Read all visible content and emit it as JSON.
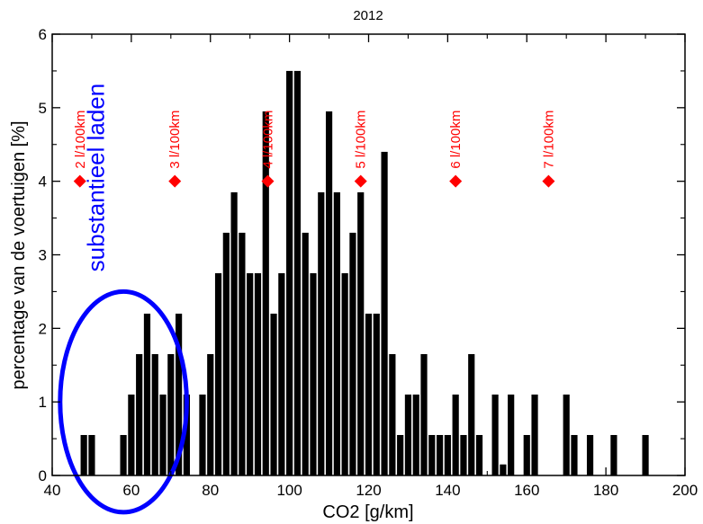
{
  "chart_data": {
    "type": "bar",
    "title": "2012",
    "xlabel": "CO2 [g/km]",
    "ylabel": "percentage van de voertuigen [%]",
    "xlim": [
      40,
      200
    ],
    "ylim": [
      0,
      6
    ],
    "x_ticks": [
      40,
      60,
      80,
      100,
      120,
      140,
      160,
      180,
      200
    ],
    "y_ticks": [
      0,
      1,
      2,
      3,
      4,
      5,
      6
    ],
    "bin_width": 2,
    "bar_color": "#000000",
    "bins": [
      {
        "x": 48,
        "y": 0.55
      },
      {
        "x": 50,
        "y": 0.55
      },
      {
        "x": 58,
        "y": 0.55
      },
      {
        "x": 60,
        "y": 1.1
      },
      {
        "x": 62,
        "y": 1.65
      },
      {
        "x": 64,
        "y": 2.2
      },
      {
        "x": 66,
        "y": 1.65
      },
      {
        "x": 68,
        "y": 1.1
      },
      {
        "x": 70,
        "y": 1.65
      },
      {
        "x": 72,
        "y": 2.2
      },
      {
        "x": 74,
        "y": 1.1
      },
      {
        "x": 78,
        "y": 1.1
      },
      {
        "x": 80,
        "y": 1.65
      },
      {
        "x": 82,
        "y": 2.75
      },
      {
        "x": 84,
        "y": 3.3
      },
      {
        "x": 86,
        "y": 3.85
      },
      {
        "x": 88,
        "y": 3.3
      },
      {
        "x": 90,
        "y": 2.75
      },
      {
        "x": 92,
        "y": 2.75
      },
      {
        "x": 94,
        "y": 4.95
      },
      {
        "x": 96,
        "y": 2.2
      },
      {
        "x": 98,
        "y": 2.75
      },
      {
        "x": 100,
        "y": 5.5
      },
      {
        "x": 102,
        "y": 5.5
      },
      {
        "x": 104,
        "y": 3.3
      },
      {
        "x": 106,
        "y": 2.75
      },
      {
        "x": 108,
        "y": 3.85
      },
      {
        "x": 110,
        "y": 4.95
      },
      {
        "x": 112,
        "y": 3.85
      },
      {
        "x": 114,
        "y": 2.75
      },
      {
        "x": 116,
        "y": 3.3
      },
      {
        "x": 118,
        "y": 3.85
      },
      {
        "x": 120,
        "y": 2.2
      },
      {
        "x": 122,
        "y": 2.2
      },
      {
        "x": 124,
        "y": 4.4
      },
      {
        "x": 126,
        "y": 1.65
      },
      {
        "x": 128,
        "y": 0.55
      },
      {
        "x": 130,
        "y": 1.1
      },
      {
        "x": 132,
        "y": 1.1
      },
      {
        "x": 134,
        "y": 1.65
      },
      {
        "x": 136,
        "y": 0.55
      },
      {
        "x": 138,
        "y": 0.55
      },
      {
        "x": 140,
        "y": 0.55
      },
      {
        "x": 142,
        "y": 1.1
      },
      {
        "x": 144,
        "y": 0.55
      },
      {
        "x": 146,
        "y": 1.65
      },
      {
        "x": 148,
        "y": 0.55
      },
      {
        "x": 152,
        "y": 1.1
      },
      {
        "x": 154,
        "y": 0.15
      },
      {
        "x": 156,
        "y": 1.1
      },
      {
        "x": 160,
        "y": 0.55
      },
      {
        "x": 162,
        "y": 1.1
      },
      {
        "x": 170,
        "y": 1.1
      },
      {
        "x": 172,
        "y": 0.55
      },
      {
        "x": 176,
        "y": 0.55
      },
      {
        "x": 182,
        "y": 0.55
      },
      {
        "x": 190,
        "y": 0.55
      }
    ],
    "fuel_markers": {
      "color": "#ff0000",
      "y": 4,
      "points": [
        {
          "x": 47,
          "label": "2 l/100km"
        },
        {
          "x": 71,
          "label": "3 l/100km"
        },
        {
          "x": 94.5,
          "label": "4 l/100km"
        },
        {
          "x": 118,
          "label": "5 l/100km"
        },
        {
          "x": 142,
          "label": "6 l/100km"
        },
        {
          "x": 165.5,
          "label": "7 l/100km"
        }
      ]
    },
    "annotation": {
      "text": "substantieel laden",
      "color": "#0000ff",
      "center": {
        "x": 58,
        "y": 1.0
      },
      "radius": {
        "x": 16,
        "y": 1.5
      }
    }
  }
}
